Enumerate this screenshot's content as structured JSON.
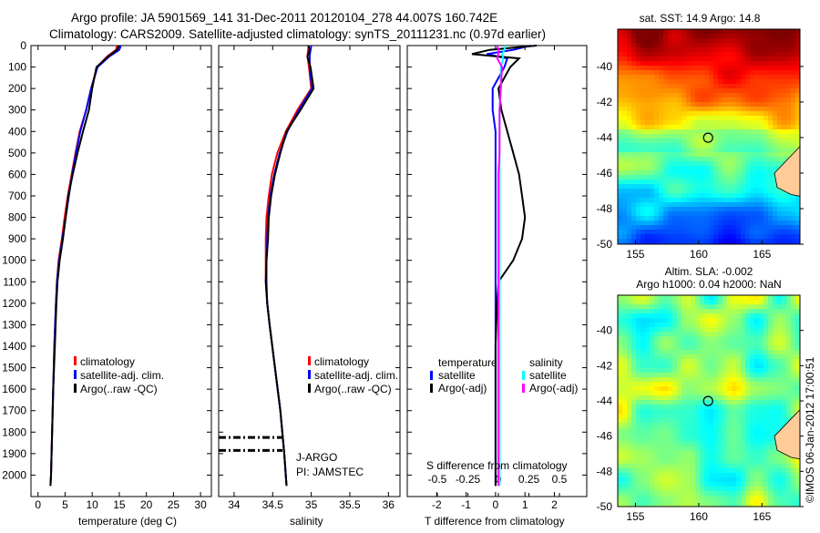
{
  "title": {
    "line1": "Argo profile: JA 5901569_141 31-Dec-2011 20120104_278 44.007S 160.742E",
    "line2": "Climatology: CARS2009. Satellite-adjusted climatology: synTS_20111231.nc (0.97d earlier)"
  },
  "colors": {
    "climatology": "#ff0000",
    "satellite": "#0000ff",
    "argo": "#000000",
    "sal_satellite": "#00ffff",
    "sal_argo": "#ff00ff"
  },
  "chart_data": [
    {
      "type": "line",
      "name": "temperature-profile",
      "xlabel": "temperature (deg C)",
      "ylabel": "",
      "xlim": [
        -1.3,
        32
      ],
      "ylim": [
        2100,
        0
      ],
      "xticks": [
        "0",
        "5",
        "10",
        "15",
        "20",
        "25",
        "30"
      ],
      "xtick_values": [
        0,
        5,
        10,
        15,
        20,
        25,
        30
      ],
      "yticks": [
        "0",
        "100",
        "200",
        "300",
        "400",
        "500",
        "600",
        "700",
        "800",
        "900",
        "1000",
        "1100",
        "1200",
        "1300",
        "1400",
        "1500",
        "1600",
        "1700",
        "1800",
        "1900",
        "2000"
      ],
      "ytick_values": [
        0,
        100,
        200,
        300,
        400,
        500,
        600,
        700,
        800,
        900,
        1000,
        1100,
        1200,
        1300,
        1400,
        1500,
        1600,
        1700,
        1800,
        1900,
        2000
      ],
      "legend": [
        "climatology",
        "satellite-adj. clim.",
        "Argo(..raw -QC)"
      ],
      "depth": [
        0,
        20,
        50,
        100,
        200,
        300,
        400,
        500,
        600,
        700,
        800,
        900,
        1000,
        1100,
        1200,
        1400,
        1600,
        1800,
        2000,
        2050
      ],
      "series": [
        {
          "name": "climatology",
          "values": [
            14.6,
            14.4,
            12.8,
            10.9,
            9.8,
            8.9,
            7.7,
            6.9,
            6.2,
            5.5,
            4.9,
            4.4,
            3.8,
            3.5,
            3.3,
            3.0,
            2.8,
            2.6,
            2.4,
            2.3
          ]
        },
        {
          "name": "satellite-adj. clim.",
          "values": [
            15.3,
            15.0,
            13.2,
            11.0,
            9.8,
            8.9,
            7.8,
            7.0,
            6.3,
            5.7,
            5.1,
            4.5,
            3.9,
            3.5,
            3.3,
            3.0,
            2.8,
            2.6,
            2.4,
            2.3
          ]
        },
        {
          "name": "Argo(..raw -QC)",
          "values": [
            14.9,
            14.6,
            13.0,
            10.8,
            10.0,
            9.4,
            8.3,
            7.3,
            6.4,
            5.6,
            5.1,
            4.6,
            4.0,
            3.6,
            3.4,
            3.1,
            2.8,
            2.6,
            2.4,
            2.3
          ]
        }
      ]
    },
    {
      "type": "line",
      "name": "salinity-profile",
      "xlabel": "salinity",
      "xlim": [
        33.8,
        36.15
      ],
      "ylim": [
        2100,
        0
      ],
      "xticks": [
        "34",
        "34.5",
        "35",
        "35.5",
        "36"
      ],
      "xtick_values": [
        34,
        34.5,
        35,
        35.5,
        36
      ],
      "legend": [
        "climatology",
        "satellite-adj. clim.",
        "Argo(..raw -QC)"
      ],
      "annotation": [
        "J-ARGO",
        "PI: JAMSTEC"
      ],
      "depth": [
        0,
        20,
        50,
        100,
        200,
        300,
        400,
        500,
        600,
        700,
        800,
        900,
        1000,
        1100,
        1200,
        1300,
        1500,
        1700,
        1900,
        2050
      ],
      "series": [
        {
          "name": "climatology",
          "values": [
            34.97,
            34.96,
            34.95,
            34.97,
            35.0,
            34.82,
            34.67,
            34.56,
            34.49,
            34.45,
            34.42,
            34.41,
            34.41,
            34.41,
            34.43,
            34.46,
            34.53,
            34.6,
            34.65,
            34.68
          ]
        },
        {
          "name": "satellite-adj. clim.",
          "values": [
            35.0,
            34.99,
            34.98,
            34.98,
            35.01,
            34.84,
            34.69,
            34.59,
            34.52,
            34.47,
            34.44,
            34.43,
            34.42,
            34.42,
            34.43,
            34.46,
            34.53,
            34.6,
            34.65,
            34.68
          ]
        },
        {
          "name": "Argo(..raw -QC)",
          "values": [
            34.96,
            34.98,
            34.95,
            34.99,
            35.03,
            34.86,
            34.68,
            34.6,
            34.53,
            34.48,
            34.45,
            34.44,
            34.42,
            34.41,
            34.43,
            34.46,
            34.53,
            34.6,
            34.65,
            34.68
          ]
        }
      ]
    },
    {
      "type": "line",
      "name": "difference-profile",
      "xlabel": "T difference from climatology",
      "xlabel_top": "S difference from climatology",
      "xlim": [
        -3,
        3.1
      ],
      "ylim": [
        2100,
        0
      ],
      "xticks": [
        "-2",
        "-1",
        "0",
        "1",
        "2"
      ],
      "xtick_values": [
        -2,
        -1,
        0,
        1,
        2
      ],
      "xticks_top": [
        "-0.5",
        "-0.25",
        "0",
        "0.25",
        "0.5"
      ],
      "xtick_top_values": [
        -0.5,
        -0.25,
        0,
        0.25,
        0.5
      ],
      "legend_headers": [
        "temperature",
        "salinity"
      ],
      "legend": [
        "satellite",
        "Argo(-adj)",
        "satellite",
        "Argo(-adj)"
      ],
      "depth": [
        0,
        20,
        40,
        60,
        100,
        200,
        300,
        400,
        500,
        600,
        700,
        800,
        900,
        1000,
        1100,
        1200,
        1400,
        1600,
        1800,
        2000,
        2050
      ],
      "series": [
        {
          "name": "temperature satellite",
          "values": [
            1.2,
            0.6,
            -0.3,
            0.4,
            0.3,
            -0.1,
            -0.1,
            0,
            0,
            0,
            0,
            0,
            0,
            0,
            0,
            0,
            0,
            0,
            0,
            0,
            0
          ]
        },
        {
          "name": "temperature Argo(-adj)",
          "values": [
            1.4,
            -0.2,
            -0.8,
            0.8,
            0.5,
            0.1,
            0.2,
            0.4,
            0.6,
            0.8,
            0.9,
            1.0,
            0.9,
            0.6,
            0.1,
            0.05,
            0,
            0,
            0,
            0,
            0
          ]
        },
        {
          "name": "salinity satellite",
          "values": [
            0.06,
            0.05,
            0.03,
            0.04,
            0.02,
            0.02,
            0.01,
            0.01,
            0.01,
            0.01,
            0.01,
            0.01,
            0.01,
            0.01,
            0.01,
            0.01,
            0.01,
            0.01,
            0.01,
            0.01,
            0.01
          ]
        },
        {
          "name": "salinity Argo(-adj)",
          "values": [
            -0.01,
            0.0,
            0.0,
            -0.01,
            0.03,
            0.02,
            0.01,
            0.01,
            0.01,
            0.0,
            0.0,
            0.0,
            0.0,
            0.0,
            0.0,
            0.0,
            0.0,
            0.0,
            0.0,
            0.0,
            0.0
          ]
        }
      ]
    },
    {
      "type": "heatmap",
      "name": "sst-map",
      "title": "sat. SST: 14.9 Argo: 14.8",
      "xlim": [
        153.6,
        168
      ],
      "ylim": [
        -50,
        -37.9
      ],
      "xticks": [
        "155",
        "160",
        "165"
      ],
      "xtick_values": [
        155,
        160,
        165
      ],
      "yticks": [
        "-40",
        "-42",
        "-44",
        "-46",
        "-48",
        "-50"
      ],
      "ytick_values": [
        -40,
        -42,
        -44,
        -46,
        -48,
        -50
      ],
      "marker": {
        "lon": 160.742,
        "lat": -44.007
      }
    },
    {
      "type": "heatmap",
      "name": "sla-map",
      "title": "Altim. SLA: -0.002",
      "subtitle": "Argo h1000: 0.04 h2000: NaN",
      "xlim": [
        153.6,
        168
      ],
      "ylim": [
        -50,
        -38
      ],
      "xticks": [
        "155",
        "160",
        "165"
      ],
      "xtick_values": [
        155,
        160,
        165
      ],
      "yticks": [
        "-40",
        "-42",
        "-44",
        "-46",
        "-48",
        "-50"
      ],
      "ytick_values": [
        -40,
        -42,
        -44,
        -46,
        -48,
        -50
      ],
      "marker": {
        "lon": 160.742,
        "lat": -44.007
      },
      "credit": "©IMOS 06-Jan-2012 17:00:51"
    }
  ]
}
